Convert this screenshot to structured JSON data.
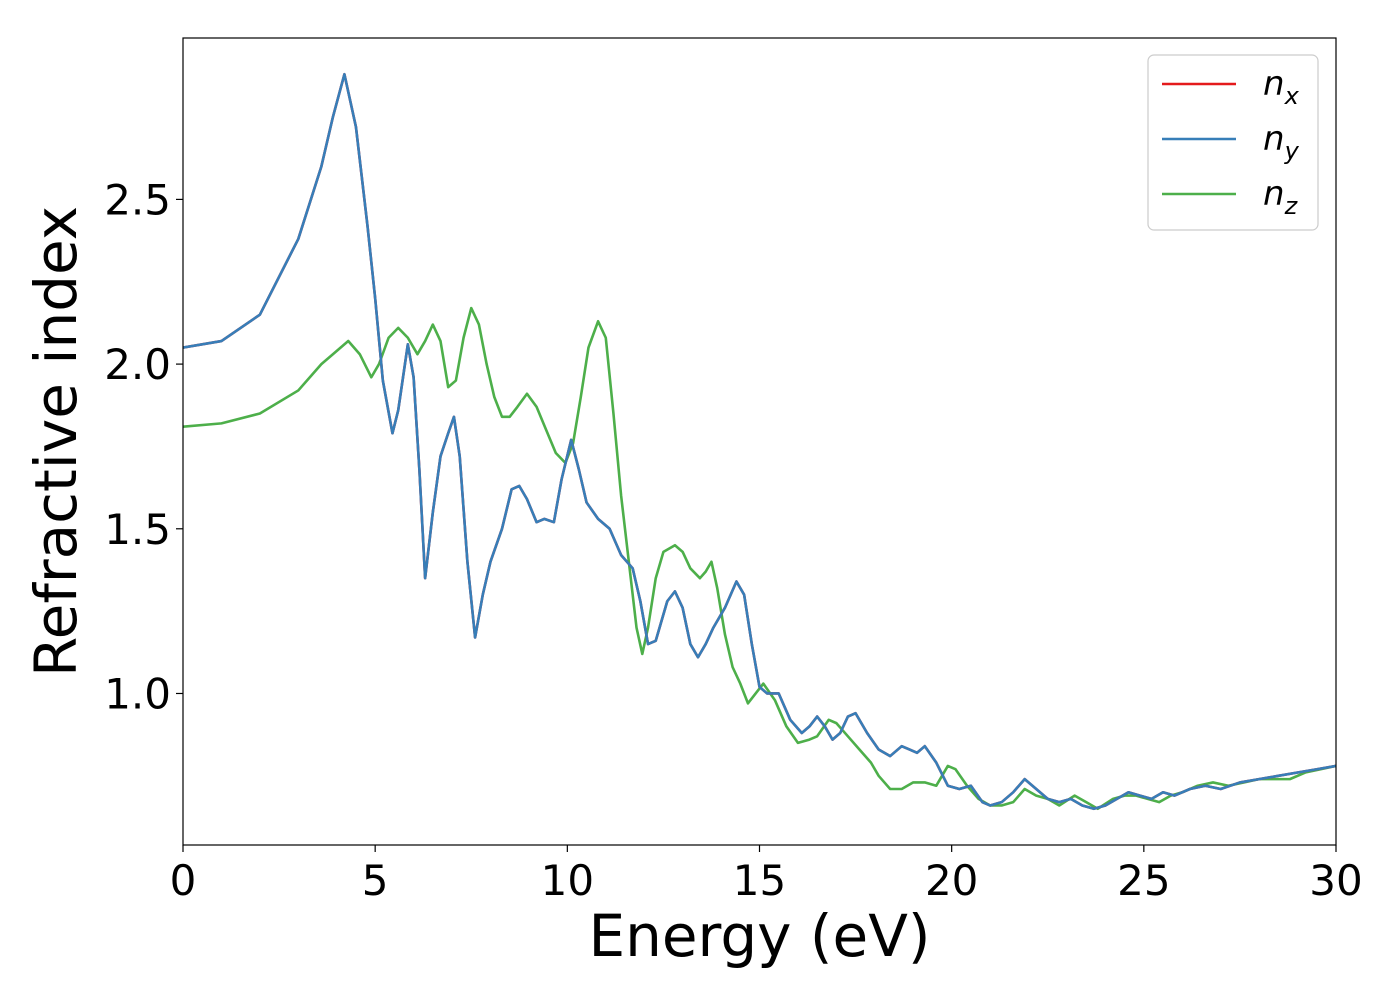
{
  "chart_data": {
    "type": "line",
    "title": "",
    "xlabel": "Energy (eV)",
    "ylabel": "Refractive index",
    "xlim": [
      0,
      30
    ],
    "ylim": [
      0.54,
      2.99
    ],
    "xticks": [
      0,
      5,
      10,
      15,
      20,
      25,
      30
    ],
    "xtick_labels": [
      "0",
      "5",
      "10",
      "15",
      "20",
      "25",
      "30"
    ],
    "yticks": [
      1.0,
      1.5,
      2.0,
      2.5
    ],
    "ytick_labels": [
      "1.0",
      "1.5",
      "2.0",
      "2.5"
    ],
    "grid": false,
    "legend": {
      "position": "top-right"
    },
    "series": [
      {
        "key": "nx",
        "name_base": "n",
        "name_sub": "x",
        "color": "#e41a1c",
        "points": [
          [
            0,
            2.05
          ],
          [
            1,
            2.07
          ],
          [
            2,
            2.15
          ],
          [
            3,
            2.38
          ],
          [
            3.6,
            2.6
          ],
          [
            3.9,
            2.75
          ],
          [
            4.2,
            2.88
          ],
          [
            4.5,
            2.72
          ],
          [
            4.8,
            2.42
          ],
          [
            5.0,
            2.2
          ],
          [
            5.2,
            1.95
          ],
          [
            5.45,
            1.79
          ],
          [
            5.6,
            1.86
          ],
          [
            5.85,
            2.06
          ],
          [
            6.0,
            1.96
          ],
          [
            6.15,
            1.68
          ],
          [
            6.3,
            1.35
          ],
          [
            6.5,
            1.55
          ],
          [
            6.7,
            1.72
          ],
          [
            6.9,
            1.79
          ],
          [
            7.05,
            1.84
          ],
          [
            7.2,
            1.72
          ],
          [
            7.4,
            1.4
          ],
          [
            7.6,
            1.17
          ],
          [
            7.8,
            1.3
          ],
          [
            8.0,
            1.4
          ],
          [
            8.3,
            1.5
          ],
          [
            8.55,
            1.62
          ],
          [
            8.75,
            1.63
          ],
          [
            8.95,
            1.59
          ],
          [
            9.2,
            1.52
          ],
          [
            9.4,
            1.53
          ],
          [
            9.65,
            1.52
          ],
          [
            9.85,
            1.65
          ],
          [
            10.1,
            1.77
          ],
          [
            10.3,
            1.68
          ],
          [
            10.5,
            1.58
          ],
          [
            10.8,
            1.53
          ],
          [
            11.1,
            1.5
          ],
          [
            11.4,
            1.42
          ],
          [
            11.7,
            1.38
          ],
          [
            11.9,
            1.28
          ],
          [
            12.1,
            1.15
          ],
          [
            12.3,
            1.16
          ],
          [
            12.6,
            1.28
          ],
          [
            12.8,
            1.31
          ],
          [
            13.0,
            1.26
          ],
          [
            13.2,
            1.15
          ],
          [
            13.4,
            1.11
          ],
          [
            13.6,
            1.15
          ],
          [
            13.8,
            1.2
          ],
          [
            14.1,
            1.26
          ],
          [
            14.4,
            1.34
          ],
          [
            14.6,
            1.3
          ],
          [
            14.8,
            1.15
          ],
          [
            15.0,
            1.02
          ],
          [
            15.2,
            1.0
          ],
          [
            15.5,
            1.0
          ],
          [
            15.8,
            0.92
          ],
          [
            16.1,
            0.88
          ],
          [
            16.3,
            0.9
          ],
          [
            16.5,
            0.93
          ],
          [
            16.7,
            0.9
          ],
          [
            16.9,
            0.86
          ],
          [
            17.1,
            0.88
          ],
          [
            17.3,
            0.93
          ],
          [
            17.5,
            0.94
          ],
          [
            17.8,
            0.88
          ],
          [
            18.1,
            0.83
          ],
          [
            18.4,
            0.81
          ],
          [
            18.7,
            0.84
          ],
          [
            18.9,
            0.83
          ],
          [
            19.1,
            0.82
          ],
          [
            19.3,
            0.84
          ],
          [
            19.6,
            0.79
          ],
          [
            19.9,
            0.72
          ],
          [
            20.2,
            0.71
          ],
          [
            20.5,
            0.72
          ],
          [
            20.8,
            0.67
          ],
          [
            21.0,
            0.66
          ],
          [
            21.3,
            0.67
          ],
          [
            21.6,
            0.7
          ],
          [
            21.9,
            0.74
          ],
          [
            22.2,
            0.71
          ],
          [
            22.5,
            0.68
          ],
          [
            22.8,
            0.67
          ],
          [
            23.1,
            0.68
          ],
          [
            23.4,
            0.66
          ],
          [
            23.7,
            0.65
          ],
          [
            24.0,
            0.66
          ],
          [
            24.3,
            0.68
          ],
          [
            24.6,
            0.7
          ],
          [
            24.9,
            0.69
          ],
          [
            25.2,
            0.68
          ],
          [
            25.5,
            0.7
          ],
          [
            25.8,
            0.69
          ],
          [
            26.2,
            0.71
          ],
          [
            26.6,
            0.72
          ],
          [
            27.0,
            0.71
          ],
          [
            27.5,
            0.73
          ],
          [
            28.0,
            0.74
          ],
          [
            28.5,
            0.75
          ],
          [
            29.0,
            0.76
          ],
          [
            29.5,
            0.77
          ],
          [
            30.0,
            0.78
          ]
        ]
      },
      {
        "key": "ny",
        "name_base": "n",
        "name_sub": "y",
        "color": "#377eb8",
        "points": [
          [
            0,
            2.05
          ],
          [
            1,
            2.07
          ],
          [
            2,
            2.15
          ],
          [
            3,
            2.38
          ],
          [
            3.6,
            2.6
          ],
          [
            3.9,
            2.75
          ],
          [
            4.2,
            2.88
          ],
          [
            4.5,
            2.72
          ],
          [
            4.8,
            2.42
          ],
          [
            5.0,
            2.2
          ],
          [
            5.2,
            1.95
          ],
          [
            5.45,
            1.79
          ],
          [
            5.6,
            1.86
          ],
          [
            5.85,
            2.06
          ],
          [
            6.0,
            1.96
          ],
          [
            6.15,
            1.68
          ],
          [
            6.3,
            1.35
          ],
          [
            6.5,
            1.55
          ],
          [
            6.7,
            1.72
          ],
          [
            6.9,
            1.79
          ],
          [
            7.05,
            1.84
          ],
          [
            7.2,
            1.72
          ],
          [
            7.4,
            1.4
          ],
          [
            7.6,
            1.17
          ],
          [
            7.8,
            1.3
          ],
          [
            8.0,
            1.4
          ],
          [
            8.3,
            1.5
          ],
          [
            8.55,
            1.62
          ],
          [
            8.75,
            1.63
          ],
          [
            8.95,
            1.59
          ],
          [
            9.2,
            1.52
          ],
          [
            9.4,
            1.53
          ],
          [
            9.65,
            1.52
          ],
          [
            9.85,
            1.65
          ],
          [
            10.1,
            1.77
          ],
          [
            10.3,
            1.68
          ],
          [
            10.5,
            1.58
          ],
          [
            10.8,
            1.53
          ],
          [
            11.1,
            1.5
          ],
          [
            11.4,
            1.42
          ],
          [
            11.7,
            1.38
          ],
          [
            11.9,
            1.28
          ],
          [
            12.1,
            1.15
          ],
          [
            12.3,
            1.16
          ],
          [
            12.6,
            1.28
          ],
          [
            12.8,
            1.31
          ],
          [
            13.0,
            1.26
          ],
          [
            13.2,
            1.15
          ],
          [
            13.4,
            1.11
          ],
          [
            13.6,
            1.15
          ],
          [
            13.8,
            1.2
          ],
          [
            14.1,
            1.26
          ],
          [
            14.4,
            1.34
          ],
          [
            14.6,
            1.3
          ],
          [
            14.8,
            1.15
          ],
          [
            15.0,
            1.02
          ],
          [
            15.2,
            1.0
          ],
          [
            15.5,
            1.0
          ],
          [
            15.8,
            0.92
          ],
          [
            16.1,
            0.88
          ],
          [
            16.3,
            0.9
          ],
          [
            16.5,
            0.93
          ],
          [
            16.7,
            0.9
          ],
          [
            16.9,
            0.86
          ],
          [
            17.1,
            0.88
          ],
          [
            17.3,
            0.93
          ],
          [
            17.5,
            0.94
          ],
          [
            17.8,
            0.88
          ],
          [
            18.1,
            0.83
          ],
          [
            18.4,
            0.81
          ],
          [
            18.7,
            0.84
          ],
          [
            18.9,
            0.83
          ],
          [
            19.1,
            0.82
          ],
          [
            19.3,
            0.84
          ],
          [
            19.6,
            0.79
          ],
          [
            19.9,
            0.72
          ],
          [
            20.2,
            0.71
          ],
          [
            20.5,
            0.72
          ],
          [
            20.8,
            0.67
          ],
          [
            21.0,
            0.66
          ],
          [
            21.3,
            0.67
          ],
          [
            21.6,
            0.7
          ],
          [
            21.9,
            0.74
          ],
          [
            22.2,
            0.71
          ],
          [
            22.5,
            0.68
          ],
          [
            22.8,
            0.67
          ],
          [
            23.1,
            0.68
          ],
          [
            23.4,
            0.66
          ],
          [
            23.7,
            0.65
          ],
          [
            24.0,
            0.66
          ],
          [
            24.3,
            0.68
          ],
          [
            24.6,
            0.7
          ],
          [
            24.9,
            0.69
          ],
          [
            25.2,
            0.68
          ],
          [
            25.5,
            0.7
          ],
          [
            25.8,
            0.69
          ],
          [
            26.2,
            0.71
          ],
          [
            26.6,
            0.72
          ],
          [
            27.0,
            0.71
          ],
          [
            27.5,
            0.73
          ],
          [
            28.0,
            0.74
          ],
          [
            28.5,
            0.75
          ],
          [
            29.0,
            0.76
          ],
          [
            29.5,
            0.77
          ],
          [
            30.0,
            0.78
          ]
        ]
      },
      {
        "key": "nz",
        "name_base": "n",
        "name_sub": "z",
        "color": "#4daf4a",
        "points": [
          [
            0,
            1.81
          ],
          [
            1,
            1.82
          ],
          [
            2,
            1.85
          ],
          [
            3,
            1.92
          ],
          [
            3.6,
            2.0
          ],
          [
            3.9,
            2.03
          ],
          [
            4.3,
            2.07
          ],
          [
            4.6,
            2.03
          ],
          [
            4.9,
            1.96
          ],
          [
            5.1,
            2.0
          ],
          [
            5.35,
            2.08
          ],
          [
            5.6,
            2.11
          ],
          [
            5.85,
            2.08
          ],
          [
            6.1,
            2.03
          ],
          [
            6.3,
            2.07
          ],
          [
            6.5,
            2.12
          ],
          [
            6.7,
            2.07
          ],
          [
            6.9,
            1.93
          ],
          [
            7.1,
            1.95
          ],
          [
            7.3,
            2.08
          ],
          [
            7.5,
            2.17
          ],
          [
            7.7,
            2.12
          ],
          [
            7.9,
            2.0
          ],
          [
            8.1,
            1.9
          ],
          [
            8.3,
            1.84
          ],
          [
            8.5,
            1.84
          ],
          [
            8.7,
            1.87
          ],
          [
            8.95,
            1.91
          ],
          [
            9.2,
            1.87
          ],
          [
            9.45,
            1.8
          ],
          [
            9.7,
            1.73
          ],
          [
            9.95,
            1.7
          ],
          [
            10.15,
            1.76
          ],
          [
            10.35,
            1.9
          ],
          [
            10.55,
            2.05
          ],
          [
            10.8,
            2.13
          ],
          [
            11.0,
            2.08
          ],
          [
            11.2,
            1.85
          ],
          [
            11.4,
            1.6
          ],
          [
            11.6,
            1.4
          ],
          [
            11.8,
            1.2
          ],
          [
            11.95,
            1.12
          ],
          [
            12.1,
            1.2
          ],
          [
            12.3,
            1.35
          ],
          [
            12.5,
            1.43
          ],
          [
            12.8,
            1.45
          ],
          [
            13.0,
            1.43
          ],
          [
            13.2,
            1.38
          ],
          [
            13.45,
            1.35
          ],
          [
            13.6,
            1.37
          ],
          [
            13.75,
            1.4
          ],
          [
            13.9,
            1.32
          ],
          [
            14.1,
            1.18
          ],
          [
            14.3,
            1.08
          ],
          [
            14.5,
            1.03
          ],
          [
            14.7,
            0.97
          ],
          [
            14.9,
            1.0
          ],
          [
            15.1,
            1.03
          ],
          [
            15.4,
            0.98
          ],
          [
            15.7,
            0.9
          ],
          [
            16.0,
            0.85
          ],
          [
            16.3,
            0.86
          ],
          [
            16.5,
            0.87
          ],
          [
            16.8,
            0.92
          ],
          [
            17.0,
            0.91
          ],
          [
            17.3,
            0.87
          ],
          [
            17.6,
            0.83
          ],
          [
            17.9,
            0.79
          ],
          [
            18.1,
            0.75
          ],
          [
            18.4,
            0.71
          ],
          [
            18.7,
            0.71
          ],
          [
            19.0,
            0.73
          ],
          [
            19.3,
            0.73
          ],
          [
            19.6,
            0.72
          ],
          [
            19.9,
            0.78
          ],
          [
            20.1,
            0.77
          ],
          [
            20.4,
            0.72
          ],
          [
            20.7,
            0.68
          ],
          [
            21.0,
            0.66
          ],
          [
            21.3,
            0.66
          ],
          [
            21.6,
            0.67
          ],
          [
            21.9,
            0.71
          ],
          [
            22.2,
            0.69
          ],
          [
            22.5,
            0.68
          ],
          [
            22.8,
            0.66
          ],
          [
            23.2,
            0.69
          ],
          [
            23.5,
            0.67
          ],
          [
            23.8,
            0.65
          ],
          [
            24.2,
            0.68
          ],
          [
            24.5,
            0.69
          ],
          [
            24.8,
            0.69
          ],
          [
            25.1,
            0.68
          ],
          [
            25.4,
            0.67
          ],
          [
            25.7,
            0.69
          ],
          [
            26.0,
            0.7
          ],
          [
            26.4,
            0.72
          ],
          [
            26.8,
            0.73
          ],
          [
            27.2,
            0.72
          ],
          [
            27.6,
            0.73
          ],
          [
            28.0,
            0.74
          ],
          [
            28.4,
            0.74
          ],
          [
            28.8,
            0.74
          ],
          [
            29.2,
            0.76
          ],
          [
            29.6,
            0.77
          ],
          [
            30.0,
            0.78
          ]
        ]
      }
    ]
  }
}
